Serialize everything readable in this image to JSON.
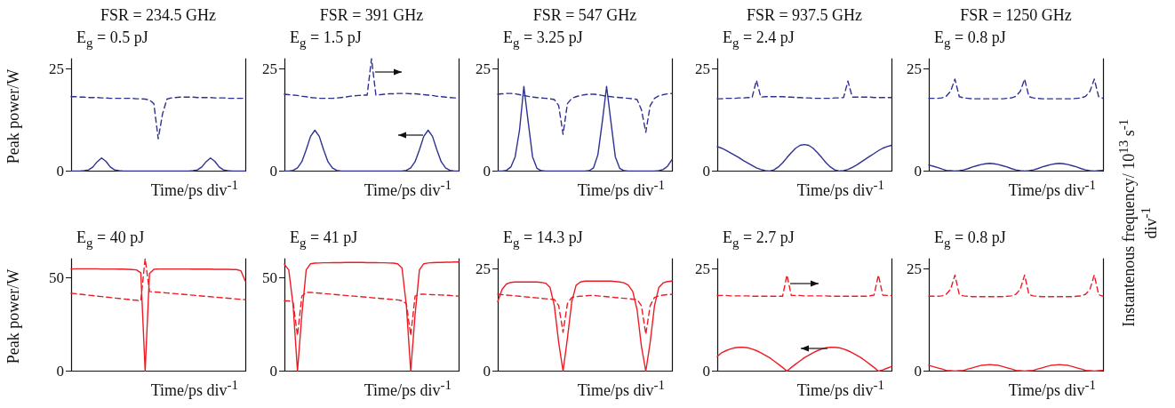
{
  "chart_data": [
    {
      "type": "line",
      "title": "FSR = 234.5 GHz",
      "subtitle": "E$_{g}$ = 0.5 pJ",
      "xlabel": "Time/ps div$^{-1}$",
      "ylabel": "Peak power/W",
      "categories": [
        null,
        null,
        null,
        null,
        null,
        null,
        null,
        null,
        null,
        null,
        null,
        null,
        null,
        null,
        null,
        null,
        null,
        null,
        null,
        null,
        null,
        null,
        null,
        null,
        null,
        null,
        null,
        null,
        null,
        null,
        null,
        null,
        null,
        null,
        null,
        null,
        null,
        null,
        null,
        null,
        null
      ],
      "ylim": [
        0,
        27.5
      ],
      "yticks": [
        0,
        25
      ],
      "marker": "none",
      "series": [
        {
          "color": "#2e3192",
          "line_style": "solid",
          "values": [
            0,
            0,
            0,
            0.1,
            0.3,
            1,
            2.3,
            3.2,
            2.4,
            1,
            0.3,
            0.1,
            0,
            0,
            0,
            0,
            0,
            0,
            0,
            0,
            0,
            0,
            0,
            0,
            0,
            0,
            0,
            0,
            0.1,
            0.3,
            1,
            2.3,
            3.2,
            2.4,
            1,
            0.3,
            0.1,
            0,
            0,
            0,
            0
          ]
        },
        {
          "color": "#2e3192",
          "line_style": "dashed",
          "values": [
            18.2,
            18.2,
            18.1,
            18.1,
            18,
            18,
            18,
            17.9,
            17.9,
            17.8,
            17.8,
            17.8,
            17.8,
            17.8,
            17.8,
            17.7,
            17.7,
            17.6,
            17.4,
            16.5,
            7.9,
            14,
            17.6,
            17.9,
            18,
            18.1,
            18.1,
            18.1,
            18.1,
            18,
            18,
            18,
            18,
            17.9,
            17.9,
            17.9,
            17.8,
            17.8,
            17.8,
            17.8,
            17.8
          ]
        }
      ]
    },
    {
      "type": "line",
      "title": "FSR = 391 GHz",
      "subtitle": "E$_{g}$ = 1.5 pJ",
      "xlabel": "Time/ps div$^{-1}$",
      "categories": [
        null,
        null,
        null,
        null,
        null,
        null,
        null,
        null,
        null,
        null,
        null,
        null,
        null,
        null,
        null,
        null,
        null,
        null,
        null,
        null,
        null,
        null,
        null,
        null,
        null,
        null,
        null,
        null,
        null,
        null,
        null,
        null,
        null,
        null,
        null,
        null,
        null,
        null,
        null,
        null,
        null
      ],
      "ylim": [
        0,
        27.5
      ],
      "yticks": [
        0,
        25
      ],
      "marker": "none",
      "series": [
        {
          "color": "#2e3192",
          "line_style": "solid",
          "values": [
            0,
            0,
            0.2,
            0.8,
            2.3,
            5.2,
            8.5,
            10,
            8.5,
            5.2,
            2.3,
            0.8,
            0.2,
            0,
            0,
            0,
            0,
            0,
            0,
            0,
            0,
            0,
            0,
            0,
            0,
            0,
            0,
            0,
            0.2,
            0.8,
            2.3,
            5.2,
            8.5,
            10,
            8.5,
            5.2,
            2.3,
            0.8,
            0.2,
            0,
            0
          ]
        },
        {
          "color": "#2e3192",
          "line_style": "dashed",
          "values": [
            18.8,
            18.7,
            18.6,
            18.5,
            18.3,
            18.2,
            18,
            17.9,
            17.8,
            17.8,
            17.8,
            17.8,
            17.9,
            18,
            18.1,
            18.3,
            18.4,
            18.5,
            18.6,
            18.6,
            27.5,
            18.6,
            18.7,
            18.8,
            18.9,
            18.9,
            19,
            19,
            19,
            18.9,
            18.9,
            18.8,
            18.7,
            18.6,
            18.5,
            18.3,
            18.2,
            18.1,
            18,
            17.9,
            17.9
          ]
        }
      ]
    },
    {
      "type": "line",
      "title": "FSR = 547 GHz",
      "subtitle": "E$_{g}$ = 3.25 pJ",
      "xlabel": "Time/ps div$^{-1}$",
      "categories": [
        null,
        null,
        null,
        null,
        null,
        null,
        null,
        null,
        null,
        null,
        null,
        null,
        null,
        null,
        null,
        null,
        null,
        null,
        null,
        null,
        null,
        null,
        null,
        null,
        null,
        null,
        null,
        null,
        null,
        null,
        null,
        null,
        null,
        null,
        null,
        null,
        null,
        null,
        null,
        null,
        null
      ],
      "ylim": [
        0,
        27.5
      ],
      "yticks": [
        0,
        25
      ],
      "marker": "none",
      "series": [
        {
          "color": "#2e3192",
          "line_style": "solid",
          "values": [
            0,
            0,
            0.2,
            1,
            3.5,
            10,
            20.7,
            12,
            3.5,
            0.7,
            0.1,
            0,
            0,
            0,
            0,
            0,
            0,
            0,
            0,
            0,
            0,
            0.1,
            0.8,
            4,
            12,
            20.7,
            12,
            3.5,
            0.7,
            0.1,
            0,
            0,
            0,
            0,
            0,
            0,
            0,
            0.1,
            0.4,
            1.2,
            2.8
          ]
        },
        {
          "color": "#2e3192",
          "line_style": "dashed",
          "values": [
            18.8,
            18.9,
            19,
            19,
            18.9,
            18.7,
            18.5,
            18.3,
            18.1,
            18,
            17.9,
            17.8,
            17.7,
            17.5,
            16,
            9,
            16.5,
            17.8,
            18.2,
            18.5,
            18.7,
            18.8,
            18.8,
            18.7,
            18.5,
            18.3,
            18.2,
            18.1,
            18,
            17.9,
            17.8,
            17.7,
            17.5,
            15,
            9.5,
            16,
            17.8,
            18.4,
            18.7,
            18.9,
            19
          ]
        }
      ]
    },
    {
      "type": "line",
      "title": "FSR = 937.5 GHz",
      "subtitle": "E$_{g}$ = 2.4 pJ",
      "xlabel": "Time/ps div$^{-1}$",
      "categories": [
        null,
        null,
        null,
        null,
        null,
        null,
        null,
        null,
        null,
        null,
        null,
        null,
        null,
        null,
        null,
        null,
        null,
        null,
        null,
        null,
        null,
        null,
        null,
        null,
        null,
        null,
        null,
        null,
        null,
        null,
        null,
        null,
        null,
        null,
        null,
        null,
        null,
        null,
        null,
        null,
        null
      ],
      "ylim": [
        0,
        27.5
      ],
      "yticks": [
        0,
        25
      ],
      "marker": "none",
      "series": [
        {
          "color": "#2e3192",
          "line_style": "solid",
          "values": [
            6,
            5.6,
            5.1,
            4.5,
            3.9,
            3.3,
            2.6,
            2,
            1.4,
            0.8,
            0.4,
            0.1,
            0,
            0.3,
            1,
            2,
            3.3,
            4.5,
            5.6,
            6.3,
            6.5,
            6.3,
            5.6,
            4.5,
            3.3,
            2,
            1,
            0.3,
            0,
            0.1,
            0.4,
            0.9,
            1.5,
            2.2,
            2.9,
            3.6,
            4.3,
            5,
            5.6,
            6,
            6.3
          ]
        },
        {
          "color": "#2e3192",
          "line_style": "dashed",
          "values": [
            17.7,
            17.7,
            17.8,
            17.8,
            17.8,
            17.9,
            17.9,
            18,
            18,
            22.2,
            18.1,
            18.2,
            18.2,
            18.2,
            18.2,
            18.2,
            18.1,
            18.1,
            18,
            18,
            17.9,
            17.9,
            17.8,
            17.8,
            17.8,
            17.8,
            17.8,
            17.9,
            17.9,
            18,
            22,
            18.1,
            18.1,
            18.1,
            18.1,
            18.1,
            18,
            18,
            18,
            18,
            18
          ]
        }
      ]
    },
    {
      "type": "line",
      "title": "FSR = 1250 GHz",
      "subtitle": "E$_{g}$ = 0.8 pJ",
      "xlabel": "Time/ps div$^{-1}$",
      "y2label": "Instantenous frequency/ 10$^{13}$ s$^{-1}$ div$^{-1}$",
      "categories": [
        null,
        null,
        null,
        null,
        null,
        null,
        null,
        null,
        null,
        null,
        null,
        null,
        null,
        null,
        null,
        null,
        null,
        null,
        null,
        null,
        null,
        null,
        null,
        null,
        null,
        null,
        null,
        null,
        null,
        null,
        null,
        null,
        null,
        null,
        null,
        null,
        null,
        null,
        null,
        null,
        null
      ],
      "ylim": [
        0,
        27.5
      ],
      "yticks": [
        0,
        25
      ],
      "marker": "none",
      "series": [
        {
          "color": "#2e3192",
          "line_style": "solid",
          "values": [
            1.5,
            1.2,
            0.9,
            0.5,
            0.2,
            0.1,
            0,
            0.1,
            0.3,
            0.6,
            1,
            1.3,
            1.6,
            1.8,
            1.9,
            1.8,
            1.6,
            1.3,
            1,
            0.6,
            0.3,
            0.1,
            0,
            0.1,
            0.3,
            0.6,
            1,
            1.3,
            1.6,
            1.8,
            1.9,
            1.8,
            1.6,
            1.3,
            1,
            0.6,
            0.3,
            0.1,
            0,
            0.1,
            0.2
          ]
        },
        {
          "color": "#2e3192",
          "line_style": "dashed",
          "values": [
            17.8,
            17.8,
            17.8,
            17.9,
            18.3,
            19.5,
            22.5,
            18.2,
            17.9,
            17.8,
            17.7,
            17.7,
            17.7,
            17.7,
            17.7,
            17.7,
            17.7,
            17.7,
            17.8,
            17.9,
            18.3,
            19.5,
            22.5,
            18.2,
            17.9,
            17.8,
            17.7,
            17.7,
            17.7,
            17.7,
            17.7,
            17.7,
            17.7,
            17.7,
            17.8,
            17.9,
            18.3,
            19.5,
            22.5,
            18.2,
            17.8
          ]
        }
      ]
    },
    {
      "type": "line",
      "subtitle": "E$_{g}$ = 40 pJ",
      "xlabel": "Time/ps div$^{-1}$",
      "ylabel": "Peak power/W",
      "categories": [
        null,
        null,
        null,
        null,
        null,
        null,
        null,
        null,
        null,
        null,
        null,
        null,
        null,
        null,
        null,
        null,
        null,
        null,
        null,
        null,
        null,
        null,
        null,
        null,
        null,
        null,
        null,
        null,
        null,
        null,
        null,
        null,
        null,
        null,
        null,
        null,
        null,
        null,
        null,
        null,
        null
      ],
      "ylim": [
        0,
        60
      ],
      "yticks": [
        0,
        50
      ],
      "marker": "none",
      "series": [
        {
          "color": "#ed1c24",
          "line_style": "solid",
          "values": [
            54.5,
            54.6,
            54.6,
            54.6,
            54.6,
            54.6,
            54.6,
            54.5,
            54.5,
            54.5,
            54.5,
            54.4,
            54.4,
            54.3,
            54.2,
            54,
            52.5,
            0,
            52,
            54.3,
            54.5,
            54.5,
            54.5,
            54.5,
            54.5,
            54.5,
            54.5,
            54.5,
            54.4,
            54.4,
            54.4,
            54.4,
            54.4,
            54.3,
            54.3,
            54.3,
            54.3,
            54.2,
            54.2,
            53.5,
            48
          ]
        },
        {
          "color": "#ed1c24",
          "line_style": "dashed",
          "values": [
            41.5,
            41.3,
            41,
            40.8,
            40.5,
            40.3,
            40,
            39.8,
            39.5,
            39.3,
            39,
            38.8,
            38.5,
            38.3,
            38,
            37.8,
            37.5,
            60,
            42.5,
            42.3,
            42.1,
            41.9,
            41.7,
            41.5,
            41.3,
            41.1,
            40.9,
            40.7,
            40.5,
            40.3,
            40.1,
            39.9,
            39.7,
            39.5,
            39.3,
            39.1,
            38.9,
            38.7,
            38.5,
            38.3,
            38.1
          ]
        }
      ]
    },
    {
      "type": "line",
      "subtitle": "E$_{g}$ = 41 pJ",
      "xlabel": "Time/ps div$^{-1}$",
      "categories": [
        null,
        null,
        null,
        null,
        null,
        null,
        null,
        null,
        null,
        null,
        null,
        null,
        null,
        null,
        null,
        null,
        null,
        null,
        null,
        null,
        null,
        null,
        null,
        null,
        null,
        null,
        null,
        null,
        null,
        null,
        null,
        null,
        null,
        null,
        null,
        null,
        null,
        null,
        null,
        null,
        null
      ],
      "ylim": [
        0,
        60
      ],
      "yticks": [
        0,
        50
      ],
      "marker": "none",
      "series": [
        {
          "color": "#ed1c24",
          "line_style": "solid",
          "values": [
            57,
            54,
            35,
            0,
            30,
            54,
            57.3,
            57.6,
            57.7,
            57.8,
            57.8,
            57.9,
            57.9,
            57.9,
            58,
            58,
            58,
            58,
            58,
            57.9,
            57.9,
            57.9,
            57.8,
            57.8,
            57.7,
            57.6,
            57.3,
            55,
            35,
            0,
            30,
            54,
            57.3,
            57.7,
            57.9,
            58,
            58,
            58.1,
            58.1,
            58.2,
            58.2
          ]
        },
        {
          "color": "#ed1c24",
          "line_style": "dashed",
          "values": [
            37.5,
            37.5,
            36.5,
            19,
            40,
            42,
            42,
            41.8,
            41.6,
            41.4,
            41.2,
            41,
            40.8,
            40.6,
            40.4,
            40.2,
            40,
            39.8,
            39.6,
            39.4,
            39.2,
            39,
            38.8,
            38.6,
            38.4,
            38.2,
            38,
            37.5,
            36,
            19,
            40,
            41,
            41,
            40.9,
            40.8,
            40.7,
            40.6,
            40.5,
            40.4,
            40.2,
            40
          ]
        }
      ]
    },
    {
      "type": "line",
      "subtitle": "E$_{g}$ = 14.3 pJ",
      "xlabel": "Time/ps div$^{-1}$",
      "categories": [
        null,
        null,
        null,
        null,
        null,
        null,
        null,
        null,
        null,
        null,
        null,
        null,
        null,
        null,
        null,
        null,
        null,
        null,
        null,
        null,
        null,
        null,
        null,
        null,
        null,
        null,
        null,
        null,
        null,
        null,
        null,
        null,
        null,
        null,
        null,
        null,
        null,
        null,
        null,
        null,
        null
      ],
      "ylim": [
        0,
        27.5
      ],
      "yticks": [
        0,
        25
      ],
      "marker": "none",
      "series": [
        {
          "color": "#ed1c24",
          "line_style": "solid",
          "values": [
            17,
            20,
            21.3,
            21.7,
            21.8,
            21.8,
            21.8,
            21.8,
            21.8,
            21.8,
            21.7,
            21.5,
            20.5,
            16,
            7,
            0,
            8,
            17,
            21,
            21.8,
            22,
            22,
            22,
            22,
            22,
            22,
            22,
            21.9,
            21.8,
            21.6,
            21,
            19.5,
            15,
            6,
            0,
            7,
            16,
            20.5,
            21.6,
            21.9,
            22
          ]
        },
        {
          "color": "#ed1c24",
          "line_style": "dashed",
          "values": [
            18.8,
            18.7,
            18.6,
            18.5,
            18.4,
            18.3,
            18.2,
            18.1,
            18,
            17.9,
            17.8,
            17.7,
            17.6,
            17.5,
            16,
            9.5,
            16.5,
            18,
            18.2,
            18.3,
            18.4,
            18.5,
            18.5,
            18.4,
            18.3,
            18.2,
            18.1,
            18,
            17.9,
            17.8,
            17.7,
            17.6,
            17.5,
            16,
            9,
            16,
            18,
            18.4,
            18.6,
            18.7,
            18.8
          ]
        }
      ]
    },
    {
      "type": "line",
      "subtitle": "E$_{g}$ = 2.7 pJ",
      "xlabel": "Time/ps div$^{-1}$",
      "categories": [
        null,
        null,
        null,
        null,
        null,
        null,
        null,
        null,
        null,
        null,
        null,
        null,
        null,
        null,
        null,
        null,
        null,
        null,
        null,
        null,
        null,
        null,
        null,
        null,
        null,
        null,
        null,
        null,
        null,
        null,
        null,
        null,
        null,
        null,
        null,
        null,
        null,
        null,
        null,
        null,
        null
      ],
      "ylim": [
        0,
        27.5
      ],
      "yticks": [
        0,
        25
      ],
      "marker": "none",
      "series": [
        {
          "color": "#ed1c24",
          "line_style": "solid",
          "values": [
            3.6,
            4.5,
            5,
            5.4,
            5.7,
            5.8,
            5.8,
            5.7,
            5.4,
            5,
            4.5,
            3.9,
            3.3,
            2.5,
            1.7,
            0.9,
            0,
            0.9,
            1.7,
            2.5,
            3.3,
            3.9,
            4.5,
            5,
            5.4,
            5.7,
            5.8,
            5.8,
            5.7,
            5.4,
            5,
            4.5,
            3.9,
            3.3,
            2.5,
            1.7,
            0.9,
            0,
            0.3,
            0.7,
            1.1
          ]
        },
        {
          "color": "#ed1c24",
          "line_style": "dashed",
          "values": [
            18.5,
            18.5,
            18.5,
            18.4,
            18.4,
            18.4,
            18.4,
            18.4,
            18.3,
            18.3,
            18.3,
            18.3,
            18.3,
            18.3,
            18.3,
            18.3,
            23.5,
            18.5,
            18.5,
            18.5,
            18.4,
            18.4,
            18.4,
            18.4,
            18.4,
            18.4,
            18.3,
            18.3,
            18.3,
            18.3,
            18.3,
            18.3,
            18.3,
            18.3,
            18.3,
            18.4,
            18.6,
            23.5,
            18.6,
            18.5,
            18.5
          ]
        }
      ]
    },
    {
      "type": "line",
      "subtitle": "E$_{g}$ = 0.8 pJ",
      "xlabel": "Time/ps div$^{-1}$",
      "categories": [
        null,
        null,
        null,
        null,
        null,
        null,
        null,
        null,
        null,
        null,
        null,
        null,
        null,
        null,
        null,
        null,
        null,
        null,
        null,
        null,
        null,
        null,
        null,
        null,
        null,
        null,
        null,
        null,
        null,
        null,
        null,
        null,
        null,
        null,
        null,
        null,
        null,
        null,
        null,
        null,
        null
      ],
      "ylim": [
        0,
        27.5
      ],
      "yticks": [
        0,
        25
      ],
      "marker": "none",
      "series": [
        {
          "color": "#ed1c24",
          "line_style": "solid",
          "values": [
            1.4,
            1.1,
            0.8,
            0.5,
            0.2,
            0.1,
            0,
            0.1,
            0.2,
            0.5,
            0.8,
            1.1,
            1.4,
            1.5,
            1.6,
            1.5,
            1.4,
            1.1,
            0.8,
            0.5,
            0.2,
            0.1,
            0,
            0.1,
            0.2,
            0.5,
            0.8,
            1.1,
            1.4,
            1.5,
            1.6,
            1.5,
            1.4,
            1.1,
            0.8,
            0.5,
            0.2,
            0.1,
            0,
            0.1,
            0.2
          ]
        },
        {
          "color": "#ed1c24",
          "line_style": "dashed",
          "values": [
            18.3,
            18.3,
            18.3,
            18.4,
            18.8,
            20,
            23.5,
            18.7,
            18.4,
            18.3,
            18.2,
            18.2,
            18.2,
            18.2,
            18.2,
            18.2,
            18.2,
            18.2,
            18.3,
            18.4,
            18.8,
            20,
            23.5,
            18.7,
            18.4,
            18.3,
            18.2,
            18.2,
            18.2,
            18.2,
            18.2,
            18.2,
            18.2,
            18.2,
            18.3,
            18.4,
            18.8,
            20,
            23.5,
            18.7,
            18.3
          ]
        }
      ]
    }
  ]
}
